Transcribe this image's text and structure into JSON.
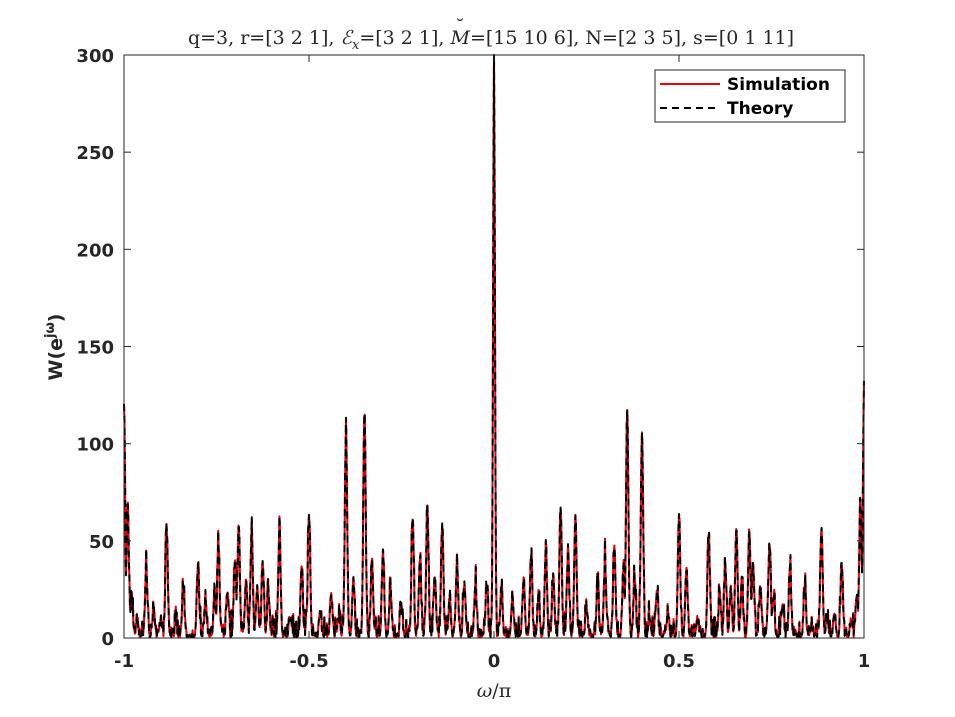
{
  "chart_data": {
    "type": "line",
    "title": "q=3, r=[3 2 1], ℰ",
    "title_parts": {
      "prefix": "q=3, r=[3 2 1], ",
      "calE": "ℰ",
      "calE_sub": "x",
      "after_E": "=[3 2 1], ",
      "M": "M",
      "M_accent": "˘",
      "rest": "=[15 10 6], N=[2 3 5], s=[0 1 11]"
    },
    "xlabel_omega": "ω",
    "xlabel_rest": "/π",
    "ylabel_base": "W(e",
    "ylabel_sup": "jω",
    "ylabel_close": ")",
    "xlim": [
      -1,
      1
    ],
    "ylim": [
      0,
      300
    ],
    "xticks": [
      -1,
      -0.5,
      0,
      0.5,
      1
    ],
    "xtick_labels": [
      "-1",
      "-0.5",
      "0",
      "0.5",
      "1"
    ],
    "yticks": [
      0,
      50,
      100,
      150,
      200,
      250,
      300
    ],
    "ytick_labels": [
      "0",
      "50",
      "100",
      "150",
      "200",
      "250",
      "300"
    ],
    "grid": false,
    "legend_position": "top-right",
    "peaks": [
      [
        -1.0,
        121
      ],
      [
        -0.99,
        68
      ],
      [
        -0.98,
        20
      ],
      [
        -0.965,
        8
      ],
      [
        -0.94,
        35
      ],
      [
        -0.92,
        12
      ],
      [
        -0.9,
        8
      ],
      [
        -0.885,
        56
      ],
      [
        -0.86,
        5
      ],
      [
        -0.84,
        25
      ],
      [
        -0.8,
        36
      ],
      [
        -0.78,
        18
      ],
      [
        -0.755,
        20
      ],
      [
        -0.745,
        47
      ],
      [
        -0.72,
        24
      ],
      [
        -0.7,
        38
      ],
      [
        -0.69,
        55
      ],
      [
        -0.67,
        30
      ],
      [
        -0.655,
        55
      ],
      [
        -0.64,
        25
      ],
      [
        -0.625,
        38
      ],
      [
        -0.61,
        22
      ],
      [
        -0.58,
        52
      ],
      [
        -0.55,
        10
      ],
      [
        -0.52,
        35
      ],
      [
        -0.5,
        63
      ],
      [
        -0.47,
        12
      ],
      [
        -0.44,
        22
      ],
      [
        -0.42,
        10
      ],
      [
        -0.4,
        105
      ],
      [
        -0.38,
        30
      ],
      [
        -0.35,
        117
      ],
      [
        -0.33,
        38
      ],
      [
        -0.3,
        44
      ],
      [
        -0.28,
        25
      ],
      [
        -0.25,
        15
      ],
      [
        -0.22,
        60
      ],
      [
        -0.2,
        40
      ],
      [
        -0.18,
        66
      ],
      [
        -0.16,
        32
      ],
      [
        -0.14,
        58
      ],
      [
        -0.12,
        18
      ],
      [
        -0.1,
        38
      ],
      [
        -0.08,
        28
      ],
      [
        -0.05,
        25
      ],
      [
        -0.02,
        25
      ],
      [
        0.0,
        289
      ],
      [
        0.02,
        25
      ],
      [
        0.05,
        20
      ],
      [
        0.08,
        28
      ],
      [
        0.1,
        38
      ],
      [
        0.12,
        18
      ],
      [
        0.14,
        42
      ],
      [
        0.16,
        32
      ],
      [
        0.18,
        66
      ],
      [
        0.2,
        42
      ],
      [
        0.22,
        62
      ],
      [
        0.25,
        15
      ],
      [
        0.28,
        25
      ],
      [
        0.3,
        38
      ],
      [
        0.325,
        47
      ],
      [
        0.35,
        36
      ],
      [
        0.36,
        117
      ],
      [
        0.38,
        30
      ],
      [
        0.4,
        105
      ],
      [
        0.42,
        10
      ],
      [
        0.44,
        22
      ],
      [
        0.47,
        12
      ],
      [
        0.5,
        63
      ],
      [
        0.52,
        35
      ],
      [
        0.55,
        10
      ],
      [
        0.58,
        52
      ],
      [
        0.61,
        22
      ],
      [
        0.625,
        38
      ],
      [
        0.64,
        25
      ],
      [
        0.655,
        55
      ],
      [
        0.67,
        30
      ],
      [
        0.69,
        55
      ],
      [
        0.7,
        38
      ],
      [
        0.72,
        24
      ],
      [
        0.745,
        47
      ],
      [
        0.755,
        20
      ],
      [
        0.78,
        18
      ],
      [
        0.8,
        36
      ],
      [
        0.84,
        25
      ],
      [
        0.86,
        5
      ],
      [
        0.885,
        56
      ],
      [
        0.9,
        8
      ],
      [
        0.92,
        12
      ],
      [
        0.94,
        35
      ],
      [
        0.965,
        8
      ],
      [
        0.98,
        20
      ],
      [
        0.99,
        68
      ],
      [
        1.0,
        121
      ]
    ],
    "series": [
      {
        "name": "Simulation",
        "color": "#e8000b",
        "dash": "solid"
      },
      {
        "name": "Theory",
        "color": "#000000",
        "dash": "dashed"
      }
    ]
  }
}
